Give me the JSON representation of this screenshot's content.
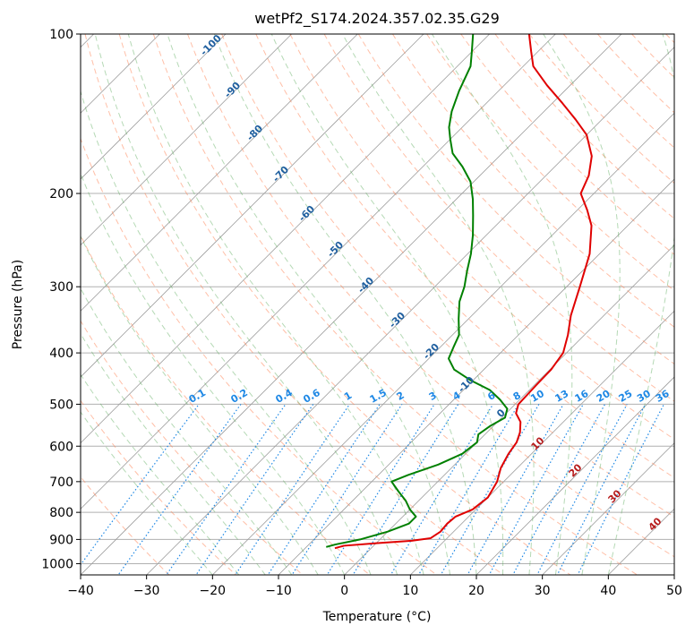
{
  "chart_data": {
    "type": "line",
    "title": "wetPf2_S174.2024.357.02.35.G29",
    "xlabel": "Temperature (°C)",
    "ylabel": "Pressure (hPa)",
    "xlim": [
      -40,
      50
    ],
    "ylim_hPa": [
      1050,
      100
    ],
    "y_scale": "log (skew-T)",
    "x_ticks": [
      -40,
      -30,
      -20,
      -10,
      0,
      10,
      20,
      30,
      40,
      50
    ],
    "y_ticks": [
      100,
      200,
      300,
      400,
      500,
      600,
      700,
      800,
      900,
      1000
    ],
    "grid": true,
    "series": [
      {
        "color": "#e00000",
        "points": [
          {
            "p": 935,
            "t": -5.5
          },
          {
            "p": 925,
            "t": -4.5
          },
          {
            "p": 915,
            "t": 0
          },
          {
            "p": 905,
            "t": 5
          },
          {
            "p": 895,
            "t": 7.5
          },
          {
            "p": 870,
            "t": 8.0
          },
          {
            "p": 840,
            "t": 7.8
          },
          {
            "p": 815,
            "t": 8.0
          },
          {
            "p": 790,
            "t": 9.5
          },
          {
            "p": 750,
            "t": 10.0
          },
          {
            "p": 700,
            "t": 9.0
          },
          {
            "p": 660,
            "t": 7.5
          },
          {
            "p": 620,
            "t": 6.5
          },
          {
            "p": 590,
            "t": 6.0
          },
          {
            "p": 565,
            "t": 5.0
          },
          {
            "p": 540,
            "t": 3.5
          },
          {
            "p": 520,
            "t": 1.5
          },
          {
            "p": 500,
            "t": 0.5
          },
          {
            "p": 460,
            "t": 0.3
          },
          {
            "p": 430,
            "t": 0.2
          },
          {
            "p": 400,
            "t": -0.5
          },
          {
            "p": 370,
            "t": -2.5
          },
          {
            "p": 340,
            "t": -5.0
          },
          {
            "p": 300,
            "t": -8.0
          },
          {
            "p": 260,
            "t": -11.5
          },
          {
            "p": 230,
            "t": -15.5
          },
          {
            "p": 215,
            "t": -18.5
          },
          {
            "p": 200,
            "t": -22.0
          },
          {
            "p": 185,
            "t": -23.5
          },
          {
            "p": 170,
            "t": -26.0
          },
          {
            "p": 155,
            "t": -30.0
          },
          {
            "p": 145,
            "t": -34.0
          },
          {
            "p": 135,
            "t": -38.5
          },
          {
            "p": 125,
            "t": -43.5
          },
          {
            "p": 115,
            "t": -48.5
          },
          {
            "p": 108,
            "t": -51.0
          },
          {
            "p": 100,
            "t": -54.0
          }
        ]
      },
      {
        "color": "#008000",
        "points": [
          {
            "p": 930,
            "t": -7.0
          },
          {
            "p": 920,
            "t": -6.0
          },
          {
            "p": 900,
            "t": -3.0
          },
          {
            "p": 870,
            "t": 0.0
          },
          {
            "p": 840,
            "t": 2.0
          },
          {
            "p": 815,
            "t": 2.0
          },
          {
            "p": 790,
            "t": 0.0
          },
          {
            "p": 760,
            "t": -2.0
          },
          {
            "p": 730,
            "t": -4.5
          },
          {
            "p": 700,
            "t": -7.0
          },
          {
            "p": 680,
            "t": -5.5
          },
          {
            "p": 650,
            "t": -2.5
          },
          {
            "p": 620,
            "t": -0.5
          },
          {
            "p": 590,
            "t": 0.0
          },
          {
            "p": 570,
            "t": -1.0
          },
          {
            "p": 550,
            "t": -0.5
          },
          {
            "p": 530,
            "t": 0.5
          },
          {
            "p": 510,
            "t": -0.5
          },
          {
            "p": 490,
            "t": -3.0
          },
          {
            "p": 470,
            "t": -6.0
          },
          {
            "p": 450,
            "t": -10.5
          },
          {
            "p": 430,
            "t": -14.5
          },
          {
            "p": 410,
            "t": -17.0
          },
          {
            "p": 390,
            "t": -18.0
          },
          {
            "p": 370,
            "t": -19.0
          },
          {
            "p": 345,
            "t": -21.5
          },
          {
            "p": 320,
            "t": -24.0
          },
          {
            "p": 300,
            "t": -25.5
          },
          {
            "p": 280,
            "t": -27.5
          },
          {
            "p": 260,
            "t": -29.5
          },
          {
            "p": 240,
            "t": -32.0
          },
          {
            "p": 220,
            "t": -35.0
          },
          {
            "p": 205,
            "t": -37.5
          },
          {
            "p": 190,
            "t": -40.5
          },
          {
            "p": 178,
            "t": -44.0
          },
          {
            "p": 168,
            "t": -47.5
          },
          {
            "p": 158,
            "t": -50.0
          },
          {
            "p": 150,
            "t": -52.0
          },
          {
            "p": 140,
            "t": -54.0
          },
          {
            "p": 128,
            "t": -56.0
          },
          {
            "p": 115,
            "t": -58.0
          },
          {
            "p": 108,
            "t": -60.0
          },
          {
            "p": 100,
            "t": -62.5
          }
        ]
      }
    ],
    "mixing_ratio_labels": [
      "0.1",
      "0.2",
      "0.4",
      "0.6",
      "1",
      "1.5",
      "2",
      "3",
      "4",
      "6",
      "8",
      "10",
      "13",
      "16",
      "20",
      "25",
      "30",
      "36"
    ],
    "mixing_ratio_values": [
      0.1,
      0.2,
      0.4,
      0.6,
      1,
      1.5,
      2,
      3,
      4,
      6,
      8,
      10,
      13,
      16,
      20,
      25,
      30,
      36
    ],
    "dry_adiabat_labels": [
      "10",
      "20",
      "30",
      "40"
    ],
    "moist_adiabat_labels": [
      "-100",
      "-90",
      "-80",
      "-70",
      "-60",
      "-50",
      "-40",
      "-30",
      "-20",
      "-10",
      "0"
    ]
  },
  "colors": {
    "temperature": "#e00000",
    "dewpoint": "#008000",
    "isotherm": "#9e9e9e",
    "dry_adiabat": "#ff7f50",
    "moist_adiabat": "#5aaa5a",
    "mixing_ratio": "#1e88e5",
    "dry_label": "#c62828",
    "moist_label": "#1f5f9f"
  }
}
